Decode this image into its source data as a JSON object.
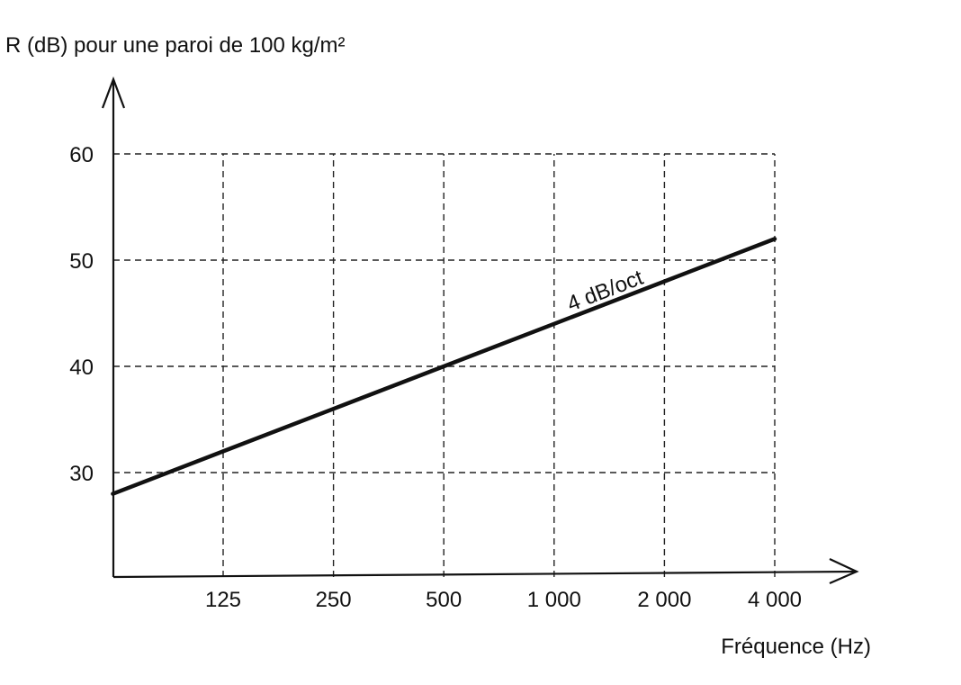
{
  "chart_data": {
    "type": "line",
    "title": "",
    "ylabel": "R (dB) pour une paroi de 100 kg/m²",
    "xlabel": "Fréquence (Hz)",
    "x_scale": "log2",
    "xlim": [
      62.5,
      4000
    ],
    "ylim": [
      20,
      60
    ],
    "x_ticks": [
      125,
      250,
      500,
      1000,
      2000,
      4000
    ],
    "x_tick_labels": [
      "125",
      "250",
      "500",
      "1 000",
      "2 000",
      "4 000"
    ],
    "y_ticks": [
      30,
      40,
      50,
      60
    ],
    "y_tick_labels": [
      "30",
      "40",
      "50",
      "60"
    ],
    "grid": true,
    "series": [
      {
        "x": [
          62.5,
          125,
          250,
          500,
          1000,
          2000,
          4000
        ],
        "y": [
          28,
          32,
          36,
          40,
          44,
          48,
          52
        ]
      }
    ],
    "annotations": [
      {
        "text": "4 dB/oct",
        "x": 1400,
        "y": 46.5
      }
    ]
  }
}
